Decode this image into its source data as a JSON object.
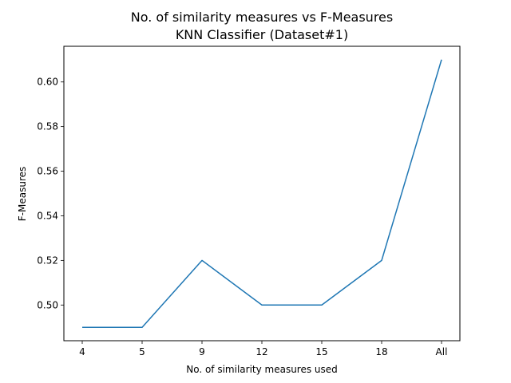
{
  "chart_data": {
    "type": "line",
    "title_line1": "No. of similarity measures vs F-Measures",
    "title_line2": "KNN Classifier (Dataset#1)",
    "xlabel": "No. of similarity measures used",
    "ylabel": "F-Measures",
    "categories": [
      "4",
      "5",
      "9",
      "12",
      "15",
      "18",
      "All"
    ],
    "series": [
      {
        "values": [
          0.49,
          0.49,
          0.52,
          0.5,
          0.5,
          0.52,
          0.61
        ],
        "color": "#1f77b4"
      }
    ],
    "ylim": [
      0.484,
      0.616
    ],
    "yticks": [
      0.5,
      0.52,
      0.54,
      0.56,
      0.58,
      0.6
    ],
    "ytick_labels": [
      "0.50",
      "0.52",
      "0.54",
      "0.56",
      "0.58",
      "0.60"
    ],
    "grid": false,
    "legend": "none"
  }
}
